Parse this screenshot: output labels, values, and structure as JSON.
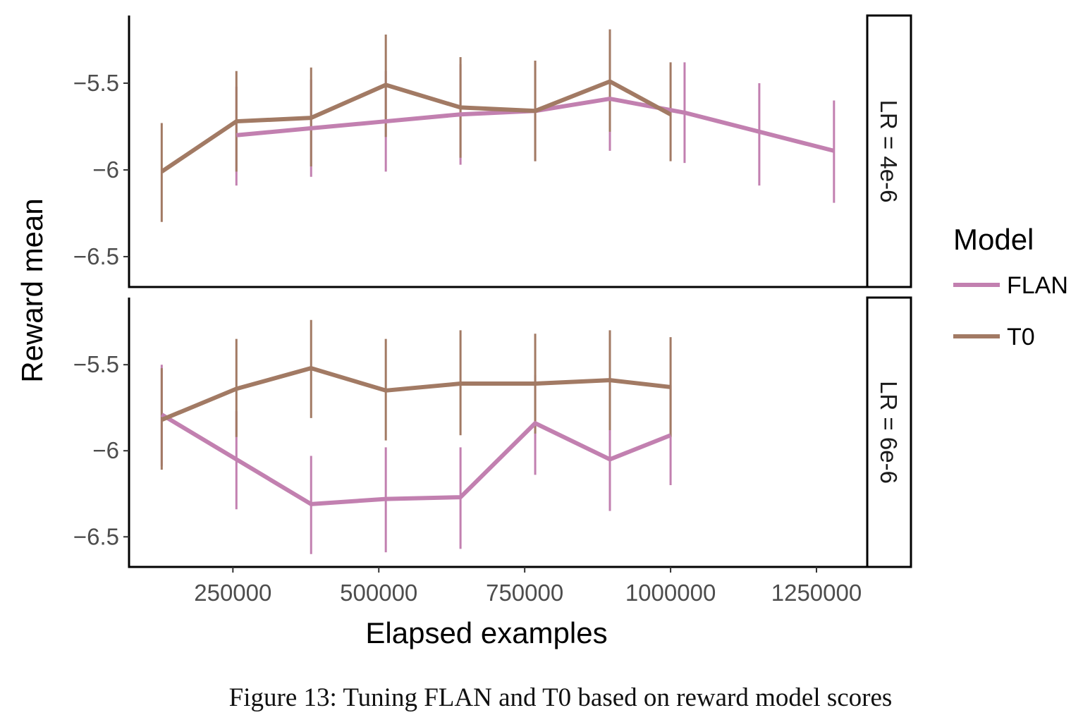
{
  "caption": "Figure 13: Tuning FLAN and T0 based on reward model scores",
  "chart_data": {
    "type": "line",
    "xlabel": "Elapsed examples",
    "ylabel": "Reward mean",
    "xlim": [
      72000,
      1337000
    ],
    "xticks": [
      250000,
      500000,
      750000,
      1000000,
      1250000
    ],
    "xtick_labels": [
      "250000",
      "500000",
      "750000",
      "1000000",
      "1250000"
    ],
    "yticks": [
      -5.5,
      -6,
      -6.5
    ],
    "ytick_labels": [
      "−5.5",
      "−6",
      "−6.5"
    ],
    "grid": false,
    "error_bars": true,
    "legend": {
      "title": "Model",
      "position": "right",
      "entries": [
        "FLAN",
        "T0"
      ]
    },
    "colors": {
      "FLAN": "#c280b0",
      "T0": "#a27a64"
    },
    "panels": [
      {
        "strip_label": "LR = 4e-6",
        "ylim": [
          -6.675,
          -5.11
        ],
        "series": [
          {
            "name": "FLAN",
            "x": [
              256000,
              384000,
              512000,
              640000,
              768000,
              896000,
              1024000,
              1152000,
              1280000
            ],
            "y": [
              -5.8,
              -5.76,
              -5.72,
              -5.68,
              -5.66,
              -5.59,
              -5.67,
              -5.78,
              -5.89
            ],
            "ymin": [
              -6.09,
              -6.04,
              -6.01,
              -5.97,
              -5.95,
              -5.89,
              -5.96,
              -6.09,
              -6.19
            ],
            "ymax": [
              -5.52,
              -5.48,
              -5.43,
              -5.39,
              -5.37,
              -5.3,
              -5.38,
              -5.5,
              -5.6
            ]
          },
          {
            "name": "T0",
            "x": [
              128000,
              256000,
              384000,
              512000,
              640000,
              768000,
              896000,
              1000000
            ],
            "y": [
              -6.01,
              -5.72,
              -5.7,
              -5.51,
              -5.64,
              -5.66,
              -5.49,
              -5.68
            ],
            "ymin": [
              -6.3,
              -6.01,
              -5.98,
              -5.81,
              -5.93,
              -5.95,
              -5.78,
              -5.95
            ],
            "ymax": [
              -5.73,
              -5.43,
              -5.41,
              -5.22,
              -5.35,
              -5.37,
              -5.19,
              -5.38
            ]
          }
        ]
      },
      {
        "strip_label": "LR = 6e-6",
        "ylim": [
          -6.675,
          -5.11
        ],
        "series": [
          {
            "name": "FLAN",
            "x": [
              128000,
              256000,
              384000,
              512000,
              640000,
              768000,
              896000,
              1000000
            ],
            "y": [
              -5.79,
              -6.05,
              -6.31,
              -6.28,
              -6.27,
              -5.84,
              -6.05,
              -5.91
            ],
            "ymin": [
              -6.09,
              -6.34,
              -6.6,
              -6.59,
              -6.57,
              -6.14,
              -6.35,
              -6.2
            ],
            "ymax": [
              -5.5,
              -5.77,
              -6.03,
              -5.98,
              -5.98,
              -5.56,
              -5.76,
              -5.62
            ]
          },
          {
            "name": "T0",
            "x": [
              128000,
              256000,
              384000,
              512000,
              640000,
              768000,
              896000,
              1000000
            ],
            "y": [
              -5.82,
              -5.64,
              -5.52,
              -5.65,
              -5.61,
              -5.61,
              -5.59,
              -5.63
            ],
            "ymin": [
              -6.11,
              -5.92,
              -5.81,
              -5.94,
              -5.91,
              -5.9,
              -5.88,
              -5.92
            ],
            "ymax": [
              -5.52,
              -5.35,
              -5.24,
              -5.35,
              -5.3,
              -5.32,
              -5.3,
              -5.34
            ]
          }
        ]
      }
    ]
  }
}
